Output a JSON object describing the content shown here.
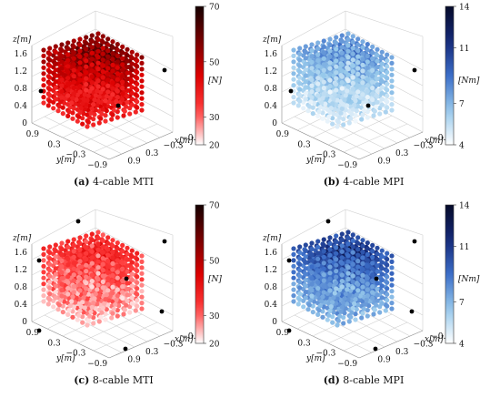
{
  "chart_data": [
    {
      "type": "scatter",
      "caption_letter": "(a)",
      "caption_text": "4-cable MTI",
      "zlabel": "z[m]",
      "xlabel": "x[m]",
      "ylabel": "y[m]",
      "z_ticks": [
        "1.6",
        "1.2",
        "0.8",
        "0.4",
        "0"
      ],
      "x_ticks": [
        "0.9",
        "0.3",
        "−0.3",
        "−0.9"
      ],
      "y_ticks": [
        "0.9",
        "0.3",
        "−0.3",
        "−0.9"
      ],
      "colorbar": {
        "label": "[N]",
        "ticks": [
          "70",
          "50",
          "30",
          "20"
        ],
        "min": 20,
        "max": 70,
        "scheme": "red"
      },
      "cable_anchors": 4,
      "intensity": "strong"
    },
    {
      "type": "scatter",
      "caption_letter": "(b)",
      "caption_text": "4-cable MPI",
      "zlabel": "z[m]",
      "xlabel": "x[m]",
      "ylabel": "y[m]",
      "z_ticks": [
        "1.6",
        "1.2",
        "0.8",
        "0.4",
        "0"
      ],
      "x_ticks": [
        "0.9",
        "0.3",
        "−0.3",
        "−0.9"
      ],
      "y_ticks": [
        "0.9",
        "0.3",
        "−0.3",
        "−0.9"
      ],
      "colorbar": {
        "label": "[Nm]",
        "ticks": [
          "14",
          "11",
          "7",
          "4"
        ],
        "min": 4,
        "max": 14,
        "scheme": "blue"
      },
      "cable_anchors": 4,
      "intensity": "light"
    },
    {
      "type": "scatter",
      "caption_letter": "(c)",
      "caption_text": "8-cable MTI",
      "zlabel": "z[m]",
      "xlabel": "x[m]",
      "ylabel": "y[m]",
      "z_ticks": [
        "1.6",
        "1.2",
        "0.8",
        "0.4",
        "0"
      ],
      "x_ticks": [
        "0.9",
        "0.3",
        "−0.3",
        "−0.9"
      ],
      "y_ticks": [
        "0.9",
        "0.3",
        "−0.3",
        "−0.9"
      ],
      "colorbar": {
        "label": "[N]",
        "ticks": [
          "70",
          "50",
          "30",
          "20"
        ],
        "min": 20,
        "max": 70,
        "scheme": "red"
      },
      "cable_anchors": 8,
      "intensity": "pale"
    },
    {
      "type": "scatter",
      "caption_letter": "(d)",
      "caption_text": "8-cable MPI",
      "zlabel": "z[m]",
      "xlabel": "x[m]",
      "ylabel": "y[m]",
      "z_ticks": [
        "1.6",
        "1.2",
        "0.8",
        "0.4",
        "0"
      ],
      "x_ticks": [
        "0.9",
        "0.3",
        "−0.3",
        "−0.9"
      ],
      "y_ticks": [
        "0.9",
        "0.3",
        "−0.3",
        "−0.9"
      ],
      "colorbar": {
        "label": "[Nm]",
        "ticks": [
          "14",
          "11",
          "7",
          "4"
        ],
        "min": 4,
        "max": 14,
        "scheme": "blue"
      },
      "cable_anchors": 8,
      "intensity": "medium"
    }
  ]
}
